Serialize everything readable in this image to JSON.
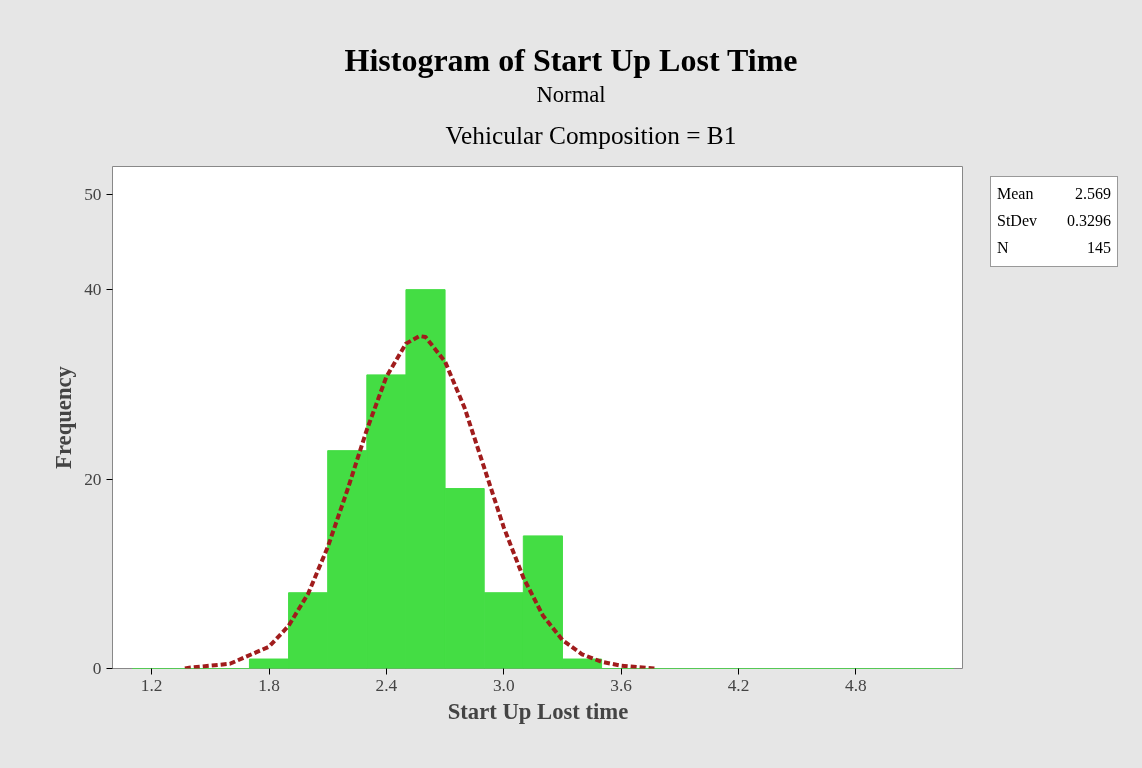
{
  "chart_data": {
    "type": "histogram",
    "title": "Histogram of Start Up Lost Time",
    "subtitle": "Normal",
    "xlabel": "Start Up Lost time",
    "ylabel": "Frequency",
    "bins": [
      1.1,
      1.3,
      1.5,
      1.7,
      1.9,
      2.1,
      2.3,
      2.5,
      2.7,
      2.9,
      3.1,
      3.3,
      3.5,
      3.7,
      3.9,
      4.1,
      4.3,
      4.5,
      4.7,
      4.9,
      5.1,
      5.3
    ],
    "values": [
      0,
      0,
      0,
      1,
      8,
      23,
      31,
      40,
      19,
      8,
      14,
      1,
      0,
      0,
      0,
      0,
      0,
      0,
      0,
      0,
      0
    ],
    "color": "#44dd44",
    "series": [
      {
        "type": "line",
        "color": "#a01c1c",
        "line_style": "dashed",
        "x": [
          1.37,
          1.4,
          1.6,
          1.8,
          1.9,
          2.0,
          2.1,
          2.2,
          2.3,
          2.4,
          2.5,
          2.569,
          2.6,
          2.7,
          2.8,
          2.9,
          3.0,
          3.1,
          3.2,
          3.3,
          3.4,
          3.5,
          3.6,
          3.77
        ],
        "values": [
          0.0,
          0.1,
          0.5,
          2.3,
          4.5,
          7.9,
          12.8,
          18.8,
          25.2,
          30.8,
          34.3,
          35.1,
          35.0,
          32.4,
          27.5,
          21.2,
          14.9,
          9.6,
          5.6,
          3.0,
          1.5,
          0.7,
          0.3,
          0.0
        ]
      }
    ],
    "xlim": [
      1.0,
      5.35
    ],
    "ylim": [
      0,
      53
    ],
    "xticks": [
      1.2,
      1.8,
      2.4,
      {
        "value": 3.0,
        "label": "3.0"
      },
      3.6,
      4.2,
      4.8
    ],
    "yticks": [
      0,
      20,
      40,
      50
    ],
    "annotations": [
      "Vehicular Composition = B1",
      "Mean 2.569",
      "StDev 0.3296",
      "N 145"
    ]
  }
}
